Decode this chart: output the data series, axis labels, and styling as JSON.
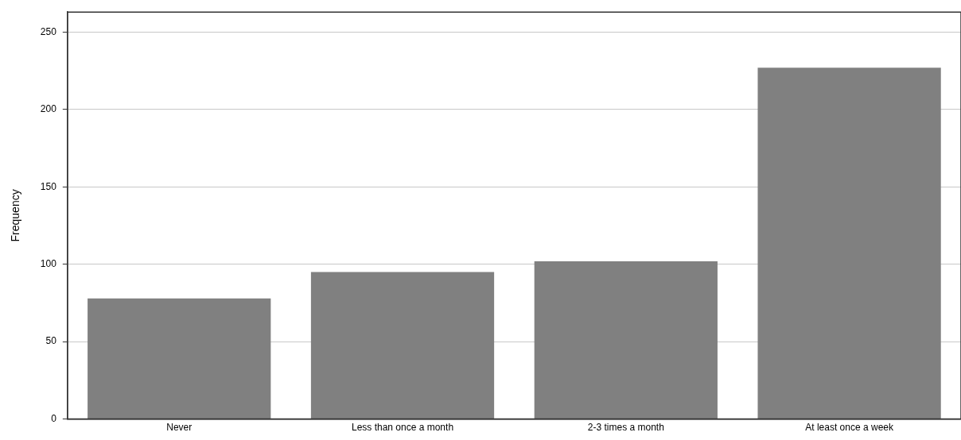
{
  "chart_data": {
    "type": "bar",
    "ylabel": "Frequency",
    "categories": [
      "Never",
      "Less than once a month",
      "2-3 times a month",
      "At least once a week"
    ],
    "values": [
      78,
      95,
      102,
      227
    ],
    "color": "#808080",
    "ylim": [
      0,
      263
    ],
    "yticks": [
      0,
      50,
      100,
      150,
      200,
      250
    ],
    "grid": "y",
    "legend": false
  }
}
